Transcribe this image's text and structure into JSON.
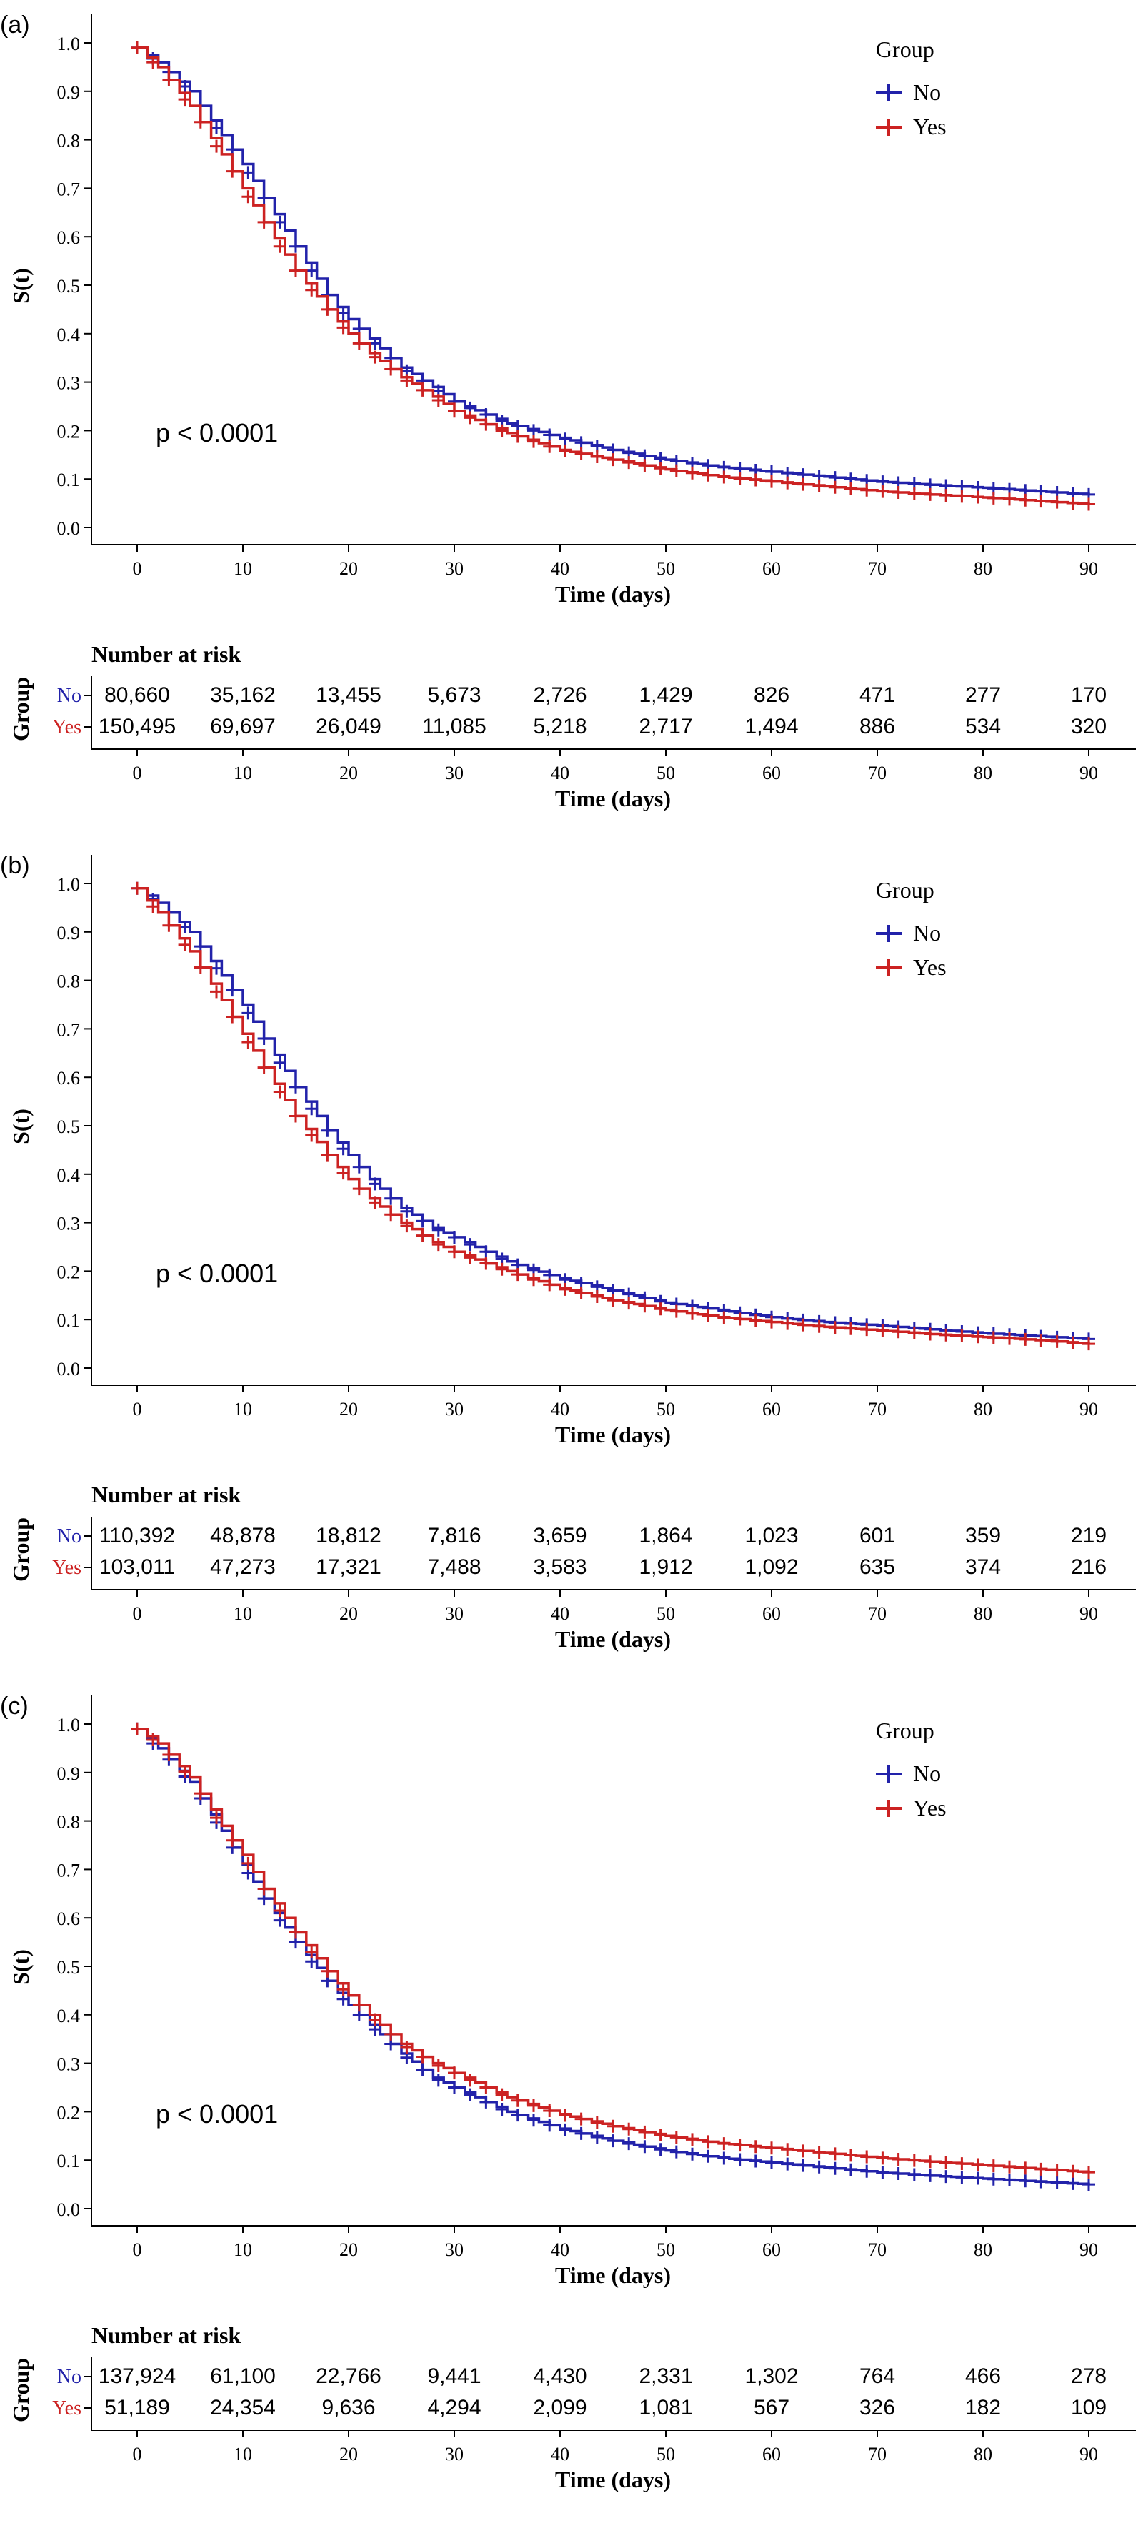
{
  "colors": {
    "no": "#2222aa",
    "yes": "#cc2222",
    "axis": "#000000"
  },
  "chart_data": [
    {
      "type": "line",
      "panel_label": "(a)",
      "title": "",
      "xlabel": "Time (days)",
      "ylabel": "S(t)",
      "xlim": [
        0,
        90
      ],
      "ylim": [
        0,
        1
      ],
      "x_ticks": [
        "0",
        "10",
        "20",
        "30",
        "40",
        "50",
        "60",
        "70",
        "80",
        "90"
      ],
      "y_ticks": [
        "0.0",
        "0.1",
        "0.2",
        "0.3",
        "0.4",
        "0.5",
        "0.6",
        "0.7",
        "0.8",
        "0.9",
        "1.0"
      ],
      "legend_title": "Group",
      "legend_position": "top-right",
      "annotation": "p < 0.0001",
      "series": [
        {
          "name": "No",
          "color_key": "no",
          "x": [
            0,
            2,
            5,
            8,
            10,
            12,
            15,
            18,
            20,
            22,
            25,
            28,
            30,
            35,
            40,
            45,
            50,
            55,
            60,
            65,
            70,
            75,
            80,
            85,
            90
          ],
          "y": [
            0.99,
            0.96,
            0.9,
            0.81,
            0.75,
            0.68,
            0.58,
            0.48,
            0.43,
            0.39,
            0.33,
            0.29,
            0.26,
            0.215,
            0.185,
            0.16,
            0.14,
            0.125,
            0.115,
            0.105,
            0.095,
            0.088,
            0.082,
            0.075,
            0.068
          ]
        },
        {
          "name": "Yes",
          "color_key": "yes",
          "x": [
            0,
            2,
            5,
            8,
            10,
            12,
            15,
            18,
            20,
            22,
            25,
            28,
            30,
            35,
            40,
            45,
            50,
            55,
            60,
            65,
            70,
            75,
            80,
            85,
            90
          ],
          "y": [
            0.99,
            0.95,
            0.87,
            0.77,
            0.7,
            0.63,
            0.53,
            0.45,
            0.4,
            0.36,
            0.31,
            0.27,
            0.24,
            0.195,
            0.16,
            0.14,
            0.12,
            0.105,
            0.095,
            0.085,
            0.075,
            0.068,
            0.062,
            0.055,
            0.048
          ]
        }
      ],
      "risk_table": {
        "title": "Number at risk",
        "group_label": "Group",
        "xlabel": "Time (days)",
        "rows": [
          {
            "name": "No",
            "color_key": "no",
            "values": [
              "80,660",
              "35,162",
              "13,455",
              "5,673",
              "2,726",
              "1,429",
              "826",
              "471",
              "277",
              "170"
            ]
          },
          {
            "name": "Yes",
            "color_key": "yes",
            "values": [
              "150,495",
              "69,697",
              "26,049",
              "11,085",
              "5,218",
              "2,717",
              "1,494",
              "886",
              "534",
              "320"
            ]
          }
        ]
      }
    },
    {
      "type": "line",
      "panel_label": "(b)",
      "title": "",
      "xlabel": "Time (days)",
      "ylabel": "S(t)",
      "xlim": [
        0,
        90
      ],
      "ylim": [
        0,
        1
      ],
      "x_ticks": [
        "0",
        "10",
        "20",
        "30",
        "40",
        "50",
        "60",
        "70",
        "80",
        "90"
      ],
      "y_ticks": [
        "0.0",
        "0.1",
        "0.2",
        "0.3",
        "0.4",
        "0.5",
        "0.6",
        "0.7",
        "0.8",
        "0.9",
        "1.0"
      ],
      "legend_title": "Group",
      "legend_position": "top-right",
      "annotation": "p < 0.0001",
      "series": [
        {
          "name": "No",
          "color_key": "no",
          "x": [
            0,
            2,
            5,
            8,
            10,
            12,
            15,
            18,
            20,
            22,
            25,
            28,
            30,
            35,
            40,
            45,
            50,
            55,
            60,
            65,
            70,
            75,
            80,
            85,
            90
          ],
          "y": [
            0.99,
            0.96,
            0.9,
            0.81,
            0.75,
            0.68,
            0.58,
            0.49,
            0.44,
            0.39,
            0.33,
            0.29,
            0.27,
            0.22,
            0.185,
            0.16,
            0.135,
            0.12,
            0.105,
            0.095,
            0.088,
            0.08,
            0.072,
            0.066,
            0.06
          ]
        },
        {
          "name": "Yes",
          "color_key": "yes",
          "x": [
            0,
            2,
            5,
            8,
            10,
            12,
            15,
            18,
            20,
            22,
            25,
            28,
            30,
            35,
            40,
            45,
            50,
            55,
            60,
            65,
            70,
            75,
            80,
            85,
            90
          ],
          "y": [
            0.99,
            0.94,
            0.86,
            0.76,
            0.69,
            0.62,
            0.52,
            0.44,
            0.39,
            0.35,
            0.3,
            0.26,
            0.24,
            0.2,
            0.165,
            0.14,
            0.12,
            0.105,
            0.095,
            0.085,
            0.078,
            0.07,
            0.064,
            0.058,
            0.05
          ]
        }
      ],
      "risk_table": {
        "title": "Number at risk",
        "group_label": "Group",
        "xlabel": "Time (days)",
        "rows": [
          {
            "name": "No",
            "color_key": "no",
            "values": [
              "110,392",
              "48,878",
              "18,812",
              "7,816",
              "3,659",
              "1,864",
              "1,023",
              "601",
              "359",
              "219"
            ]
          },
          {
            "name": "Yes",
            "color_key": "yes",
            "values": [
              "103,011",
              "47,273",
              "17,321",
              "7,488",
              "3,583",
              "1,912",
              "1,092",
              "635",
              "374",
              "216"
            ]
          }
        ]
      }
    },
    {
      "type": "line",
      "panel_label": "(c)",
      "title": "",
      "xlabel": "Time (days)",
      "ylabel": "S(t)",
      "xlim": [
        0,
        90
      ],
      "ylim": [
        0,
        1
      ],
      "x_ticks": [
        "0",
        "10",
        "20",
        "30",
        "40",
        "50",
        "60",
        "70",
        "80",
        "90"
      ],
      "y_ticks": [
        "0.0",
        "0.1",
        "0.2",
        "0.3",
        "0.4",
        "0.5",
        "0.6",
        "0.7",
        "0.8",
        "0.9",
        "1.0"
      ],
      "legend_title": "Group",
      "legend_position": "top-right",
      "annotation": "p < 0.0001",
      "series": [
        {
          "name": "No",
          "color_key": "no",
          "x": [
            0,
            2,
            5,
            8,
            10,
            12,
            15,
            18,
            20,
            22,
            25,
            28,
            30,
            35,
            40,
            45,
            50,
            55,
            60,
            65,
            70,
            75,
            80,
            85,
            90
          ],
          "y": [
            0.99,
            0.95,
            0.88,
            0.78,
            0.71,
            0.64,
            0.55,
            0.47,
            0.42,
            0.38,
            0.32,
            0.27,
            0.25,
            0.2,
            0.165,
            0.14,
            0.12,
            0.105,
            0.095,
            0.085,
            0.075,
            0.068,
            0.062,
            0.056,
            0.05
          ]
        },
        {
          "name": "Yes",
          "color_key": "yes",
          "x": [
            0,
            2,
            5,
            8,
            10,
            12,
            15,
            18,
            20,
            22,
            25,
            28,
            30,
            35,
            40,
            45,
            50,
            55,
            60,
            65,
            70,
            75,
            80,
            85,
            90
          ],
          "y": [
            0.99,
            0.96,
            0.89,
            0.79,
            0.73,
            0.66,
            0.57,
            0.49,
            0.44,
            0.4,
            0.34,
            0.3,
            0.28,
            0.23,
            0.195,
            0.17,
            0.15,
            0.135,
            0.125,
            0.115,
            0.105,
            0.097,
            0.09,
            0.082,
            0.075
          ]
        }
      ],
      "risk_table": {
        "title": "Number at risk",
        "group_label": "Group",
        "xlabel": "Time (days)",
        "rows": [
          {
            "name": "No",
            "color_key": "no",
            "values": [
              "137,924",
              "61,100",
              "22,766",
              "9,441",
              "4,430",
              "2,331",
              "1,302",
              "764",
              "466",
              "278"
            ]
          },
          {
            "name": "Yes",
            "color_key": "yes",
            "values": [
              "51,189",
              "24,354",
              "9,636",
              "4,294",
              "2,099",
              "1,081",
              "567",
              "326",
              "182",
              "109"
            ]
          }
        ]
      }
    }
  ]
}
